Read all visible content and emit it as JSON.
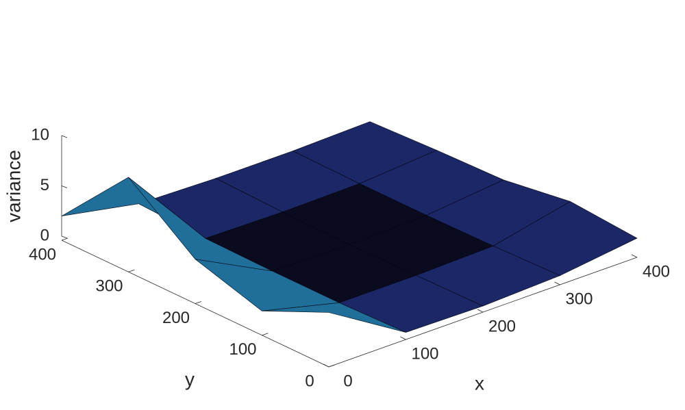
{
  "chart_data": {
    "type": "surface",
    "xlabel": "x",
    "ylabel": "y",
    "zlabel": "variance",
    "x": [
      0,
      100,
      200,
      300,
      400
    ],
    "y": [
      0,
      100,
      200,
      300,
      400
    ],
    "z": [
      [
        5,
        0.3,
        0.2,
        0.5,
        1.5
      ],
      [
        2,
        0.1,
        0.1,
        0.3,
        2
      ],
      [
        4,
        0.1,
        0,
        0.2,
        1
      ],
      [
        9,
        0.2,
        0.1,
        0.2,
        0.8
      ],
      [
        2,
        0.5,
        0.3,
        0.3,
        0.5
      ]
    ],
    "xlim": [
      0,
      400
    ],
    "ylim": [
      0,
      400
    ],
    "zlim": [
      0,
      10
    ],
    "xticks": [
      0,
      100,
      200,
      300,
      400
    ],
    "yticks": [
      0,
      100,
      200,
      300,
      400
    ],
    "zticks": [
      0,
      5,
      10
    ],
    "colormap": [
      "#0b0b1f",
      "#1b2766",
      "#1f6f9a",
      "#2bb07a",
      "#e0c030"
    ]
  }
}
